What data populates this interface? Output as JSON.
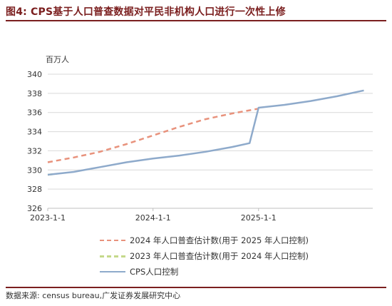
{
  "figure": {
    "title": "图4:  CPS基于人口普查数据对平民非机构人口进行一次性上修",
    "source": "数据来源:  census bureau,广发证券发展研究中心"
  },
  "chart_data": {
    "type": "line",
    "ylabel": "百万人",
    "ylim": [
      326,
      340
    ],
    "yticks": [
      326,
      328,
      330,
      332,
      334,
      336,
      338,
      340
    ],
    "xlim": [
      "2023-01-01",
      "2026-02-01"
    ],
    "xticks": [
      {
        "date": "2023-01-01",
        "label": "2023-1-1"
      },
      {
        "date": "2024-01-01",
        "label": "2024-1-1"
      },
      {
        "date": "2025-01-01",
        "label": "2025-1-1"
      }
    ],
    "grid": "horizontal",
    "legend_position": "bottom",
    "series": [
      {
        "name": "2024 年人口普查估计数(用于 2025 年人口控制)",
        "color": "#e8927c",
        "style": "dashed",
        "points": [
          [
            "2023-01-01",
            330.8
          ],
          [
            "2023-04-01",
            331.3
          ],
          [
            "2023-07-01",
            331.9
          ],
          [
            "2023-10-01",
            332.7
          ],
          [
            "2024-01-01",
            333.6
          ],
          [
            "2024-04-01",
            334.5
          ],
          [
            "2024-07-01",
            335.3
          ],
          [
            "2024-10-01",
            335.9
          ],
          [
            "2025-01-01",
            336.4
          ]
        ]
      },
      {
        "name": "2023 年人口普查估计数(用于 2024 年人口控制)",
        "color": "#c5d98a",
        "style": "dashed",
        "points": [
          [
            "2023-01-01",
            329.5
          ],
          [
            "2023-02-01",
            329.6
          ]
        ]
      },
      {
        "name": "CPS人口控制",
        "color": "#8eaacb",
        "style": "solid",
        "points": [
          [
            "2023-01-01",
            329.5
          ],
          [
            "2023-04-01",
            329.8
          ],
          [
            "2023-07-01",
            330.3
          ],
          [
            "2023-10-01",
            330.8
          ],
          [
            "2024-01-01",
            331.2
          ],
          [
            "2024-04-01",
            331.5
          ],
          [
            "2024-07-01",
            331.9
          ],
          [
            "2024-10-01",
            332.4
          ],
          [
            "2024-12-01",
            332.8
          ],
          [
            "2025-01-01",
            336.5
          ],
          [
            "2025-04-01",
            336.8
          ],
          [
            "2025-07-01",
            337.2
          ],
          [
            "2025-10-01",
            337.7
          ],
          [
            "2026-01-01",
            338.3
          ]
        ]
      }
    ]
  }
}
